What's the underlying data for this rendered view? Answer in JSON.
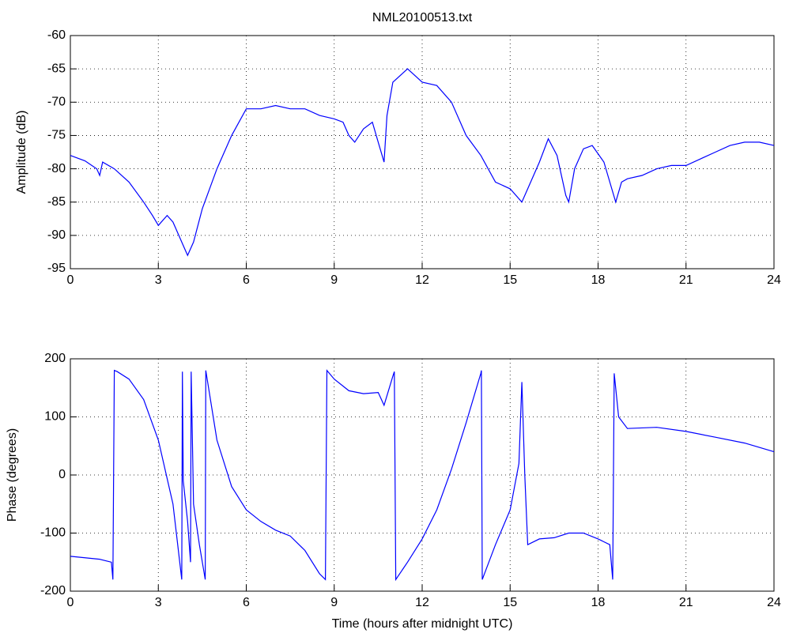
{
  "chart_data": [
    {
      "type": "line",
      "title": "NML20100513.txt",
      "y_label": "Amplitude (dB)",
      "color": "#0000ff",
      "grid": true,
      "xlim": [
        0,
        24
      ],
      "xticks": [
        0,
        3,
        6,
        9,
        12,
        15,
        18,
        21,
        24
      ],
      "ylim": [
        -95,
        -60
      ],
      "yticks": [
        -95,
        -90,
        -85,
        -80,
        -75,
        -70,
        -65,
        -60
      ],
      "x": [
        0,
        0.5,
        0.9,
        1.0,
        1.1,
        1.5,
        2.0,
        2.5,
        2.8,
        3.0,
        3.3,
        3.5,
        3.7,
        3.9,
        4.0,
        4.2,
        4.5,
        5.0,
        5.5,
        6.0,
        6.5,
        7.0,
        7.5,
        8.0,
        8.5,
        9.0,
        9.3,
        9.5,
        9.7,
        10.0,
        10.3,
        10.5,
        10.7,
        10.8,
        11.0,
        11.5,
        12.0,
        12.5,
        13.0,
        13.5,
        14.0,
        14.5,
        15.0,
        15.4,
        15.6,
        16.0,
        16.3,
        16.6,
        16.9,
        17.0,
        17.2,
        17.5,
        17.8,
        18.2,
        18.6,
        18.8,
        19.0,
        19.5,
        20.0,
        20.5,
        21.0,
        21.5,
        22.0,
        22.5,
        23.0,
        23.5,
        24.0
      ],
      "values": [
        -78,
        -78.8,
        -80,
        -81,
        -79,
        -80,
        -82,
        -85,
        -87,
        -88.5,
        -87,
        -88,
        -90,
        -92,
        -93,
        -91,
        -86,
        -80,
        -75,
        -71,
        -71,
        -70.5,
        -71,
        -71,
        -72,
        -72.5,
        -73,
        -75,
        -76,
        -74,
        -73,
        -76,
        -79,
        -72,
        -67,
        -65,
        -67,
        -67.5,
        -70,
        -75,
        -78,
        -82,
        -83,
        -85,
        -83,
        -79,
        -75.5,
        -78,
        -84,
        -85,
        -80,
        -77,
        -76.5,
        -79,
        -85,
        -82,
        -81.5,
        -81,
        -80,
        -79.5,
        -79.5,
        -78.5,
        -77.5,
        -76.5,
        -76,
        -76,
        -76.5
      ]
    },
    {
      "type": "line",
      "y_label": "Phase (degrees)",
      "x_label": "Time (hours after midnight UTC)",
      "color": "#0000ff",
      "grid": true,
      "xlim": [
        0,
        24
      ],
      "xticks": [
        0,
        3,
        6,
        9,
        12,
        15,
        18,
        21,
        24
      ],
      "ylim": [
        -200,
        200
      ],
      "yticks": [
        -200,
        -100,
        0,
        100,
        200
      ],
      "x": [
        0,
        1.0,
        1.4,
        1.45,
        1.5,
        1.6,
        2.0,
        2.5,
        3.0,
        3.5,
        3.8,
        3.82,
        3.85,
        4.0,
        4.1,
        4.12,
        4.2,
        4.4,
        4.6,
        4.62,
        5.0,
        5.5,
        6.0,
        6.5,
        7.0,
        7.5,
        8.0,
        8.5,
        8.7,
        8.75,
        9.0,
        9.5,
        10.0,
        10.5,
        10.7,
        11.0,
        11.05,
        11.1,
        11.5,
        12.0,
        12.5,
        13.0,
        13.5,
        14.0,
        14.02,
        14.05,
        14.5,
        15.0,
        15.3,
        15.4,
        15.5,
        15.6,
        16.0,
        16.5,
        17.0,
        17.5,
        18.0,
        18.4,
        18.5,
        18.55,
        18.7,
        19.0,
        20.0,
        21.0,
        22.0,
        23.0,
        24.0
      ],
      "values": [
        -140,
        -145,
        -150,
        -180,
        180,
        178,
        165,
        130,
        60,
        -50,
        -180,
        178,
        -10,
        -80,
        -150,
        178,
        -50,
        -120,
        -180,
        180,
        60,
        -20,
        -60,
        -80,
        -95,
        -105,
        -130,
        -170,
        -180,
        180,
        165,
        145,
        140,
        142,
        120,
        170,
        178,
        -180,
        -150,
        -110,
        -60,
        10,
        90,
        175,
        180,
        -180,
        -120,
        -60,
        20,
        160,
        0,
        -120,
        -110,
        -108,
        -100,
        -100,
        -110,
        -120,
        -180,
        175,
        100,
        80,
        82,
        75,
        65,
        55,
        40
      ]
    }
  ]
}
